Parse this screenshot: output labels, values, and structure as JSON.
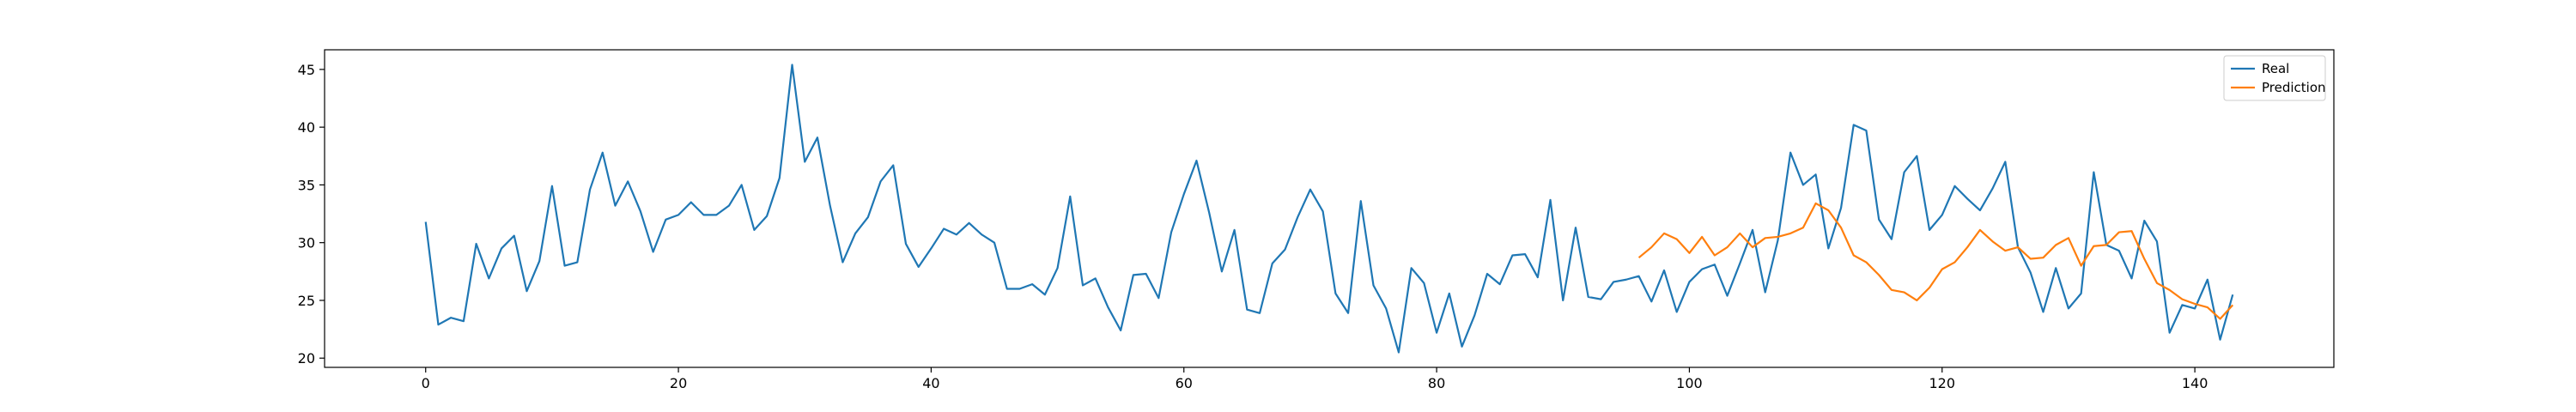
{
  "chart_data": {
    "type": "line",
    "title": "",
    "xlabel": "",
    "ylabel": "",
    "xlim": [
      -8,
      151
    ],
    "ylim": [
      19.2,
      46.7
    ],
    "x_ticks": [
      0,
      20,
      40,
      60,
      80,
      100,
      120,
      140
    ],
    "y_ticks": [
      20,
      25,
      30,
      35,
      40,
      45
    ],
    "grid": false,
    "legend_position": "top-right",
    "series": [
      {
        "name": "Real",
        "color": "#1f77b4",
        "x_start": 0,
        "values": [
          31.8,
          22.9,
          23.5,
          23.2,
          29.9,
          26.9,
          29.5,
          30.6,
          25.8,
          28.4,
          34.9,
          28.0,
          28.3,
          34.6,
          37.8,
          33.2,
          35.3,
          32.7,
          29.2,
          32.0,
          32.4,
          33.5,
          32.4,
          32.4,
          33.2,
          35.0,
          31.1,
          32.3,
          35.6,
          45.4,
          37.0,
          39.1,
          33.2,
          28.3,
          30.8,
          32.2,
          35.3,
          36.7,
          29.9,
          27.9,
          29.5,
          31.2,
          30.7,
          31.7,
          30.7,
          30.0,
          26.0,
          26.0,
          26.4,
          25.5,
          27.8,
          34.0,
          26.3,
          26.9,
          24.4,
          22.4,
          27.2,
          27.3,
          25.2,
          30.9,
          34.2,
          37.1,
          32.6,
          27.5,
          31.1,
          24.2,
          23.9,
          28.2,
          29.4,
          32.2,
          34.6,
          32.7,
          25.6,
          23.9,
          33.6,
          26.3,
          24.3,
          20.5,
          27.8,
          26.5,
          22.2,
          25.6,
          21.0,
          23.7,
          27.3,
          26.4,
          28.9,
          29.0,
          27.0,
          33.7,
          25.0,
          31.3,
          25.3,
          25.1,
          26.6,
          26.8,
          27.1,
          24.9,
          27.6,
          24.0,
          26.6,
          27.7,
          28.1,
          25.4,
          28.2,
          31.1,
          25.7,
          30.2,
          37.8,
          35.0,
          35.9,
          29.5,
          33.0,
          40.2,
          39.7,
          32.0,
          30.3,
          36.1,
          37.5,
          31.1,
          32.4,
          34.9,
          33.8,
          32.8,
          34.7,
          37.0,
          29.6,
          27.4,
          24.0,
          27.8,
          24.3,
          25.6,
          36.1,
          29.8,
          29.3,
          26.9,
          31.9,
          30.1,
          22.2,
          24.6,
          24.3,
          26.8,
          21.6,
          25.5
        ]
      },
      {
        "name": "Prediction",
        "color": "#ff7f0e",
        "x_start": 96,
        "values": [
          28.7,
          29.6,
          30.8,
          30.3,
          29.1,
          30.5,
          28.9,
          29.6,
          30.8,
          29.6,
          30.4,
          30.5,
          30.8,
          31.3,
          33.4,
          32.8,
          31.3,
          28.9,
          28.3,
          27.2,
          25.9,
          25.7,
          25.0,
          26.1,
          27.7,
          28.3,
          29.6,
          31.1,
          30.1,
          29.3,
          29.6,
          28.6,
          28.7,
          29.8,
          30.4,
          28.0,
          29.7,
          29.8,
          30.9,
          31.0,
          28.6,
          26.5,
          25.9,
          25.1,
          24.7,
          24.4,
          23.4,
          24.6
        ]
      }
    ]
  }
}
